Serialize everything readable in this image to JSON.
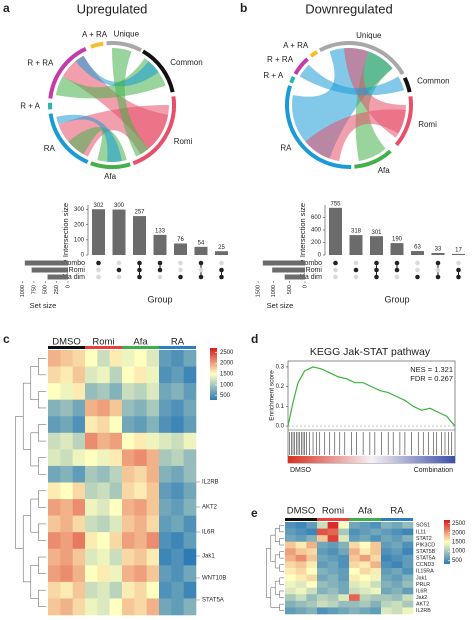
{
  "panels": {
    "a": {
      "label": "a",
      "title": "Upregulated",
      "chord": {
        "sets": [
          "A + RA",
          "Unique",
          "Common",
          "Romi",
          "Afa",
          "RA",
          "R + A",
          "R + RA"
        ]
      },
      "upset": {
        "type": "bar",
        "y_label": "Intersection size",
        "values": [
          302,
          300,
          257,
          133,
          76,
          54,
          25
        ],
        "ylim": [
          0,
          330
        ],
        "yticks": [
          0,
          100,
          200,
          300
        ],
        "color": "#6b6b6b",
        "rows": [
          "Combo",
          "Romi",
          "Afa dim"
        ],
        "matrix": [
          [
            1,
            0,
            1,
            1,
            0,
            1,
            0
          ],
          [
            0,
            1,
            1,
            1,
            0,
            0,
            1
          ],
          [
            0,
            0,
            1,
            0,
            1,
            1,
            1
          ]
        ],
        "set_sizes": [
          950,
          800,
          450
        ],
        "set_size_label": "Set size",
        "set_xlim": [
          0,
          1100
        ],
        "set_xticks": [
          1000,
          750,
          500,
          250,
          0
        ],
        "x_label": "Group"
      }
    },
    "b": {
      "label": "b",
      "title": "Downregulated",
      "chord": {
        "sets": [
          "A + RA",
          "Unique",
          "Common",
          "Romi",
          "Afa",
          "RA",
          "R + A",
          "R + RA"
        ]
      },
      "upset": {
        "type": "bar",
        "y_label": "Intersection size",
        "values": [
          755,
          318,
          301,
          190,
          63,
          33,
          17
        ],
        "ylim": [
          0,
          800
        ],
        "yticks": [
          0,
          200,
          400,
          600
        ],
        "color": "#6b6b6b",
        "rows": [
          "Combo",
          "Romi",
          "Afa dim"
        ],
        "matrix": [
          [
            1,
            0,
            1,
            1,
            0,
            1,
            0
          ],
          [
            0,
            1,
            1,
            1,
            0,
            0,
            1
          ],
          [
            0,
            0,
            1,
            0,
            1,
            1,
            1
          ]
        ],
        "set_sizes": [
          1350,
          1050,
          650
        ],
        "set_size_label": "Set size",
        "set_xlim": [
          0,
          1600
        ],
        "set_xticks": [
          1500,
          1000,
          500,
          0
        ],
        "x_label": "Group"
      }
    },
    "c": {
      "label": "c",
      "type": "heatmap",
      "groups": [
        "DMSO",
        "Romi",
        "Afa",
        "RA"
      ],
      "group_colors": [
        "#111111",
        "#e8413c",
        "#3fae49",
        "#2a7fc1"
      ],
      "genes": [
        "IL2RB",
        "AKT2",
        "IL6R",
        "Jak1",
        "WNT10B",
        "STAT5A"
      ],
      "matrix": [
        [
          1900,
          1800,
          1700,
          1500,
          1200,
          1600,
          1400,
          1500,
          1300,
          600,
          500,
          700
        ],
        [
          1700,
          1600,
          1800,
          1300,
          1400,
          1100,
          1500,
          1600,
          1400,
          500,
          600,
          400
        ],
        [
          1500,
          1400,
          1600,
          900,
          1000,
          800,
          1200,
          1100,
          1300,
          700,
          800,
          600
        ],
        [
          800,
          900,
          700,
          1900,
          2000,
          1800,
          900,
          800,
          1000,
          600,
          500,
          700
        ],
        [
          600,
          700,
          500,
          1600,
          1700,
          1500,
          700,
          600,
          800,
          500,
          400,
          600
        ],
        [
          1200,
          1300,
          1100,
          2100,
          1900,
          2000,
          1500,
          1600,
          1400,
          1300,
          1200,
          1400
        ],
        [
          1300,
          1200,
          1400,
          1500,
          1400,
          1600,
          2000,
          2100,
          1900,
          1000,
          1100,
          900
        ],
        [
          700,
          800,
          600,
          1000,
          900,
          1100,
          1800,
          1700,
          1900,
          800,
          700,
          900
        ],
        [
          1600,
          1500,
          1700,
          1100,
          1200,
          1000,
          1700,
          1600,
          1800,
          600,
          500,
          700
        ],
        [
          2000,
          1900,
          2100,
          1400,
          1300,
          1500,
          1900,
          2000,
          1800,
          700,
          600,
          800
        ],
        [
          1800,
          1900,
          1700,
          1200,
          1100,
          1300,
          1800,
          1900,
          1700,
          600,
          700,
          500
        ],
        [
          2100,
          2000,
          2200,
          1600,
          1500,
          1700,
          2000,
          1900,
          2100,
          500,
          400,
          600
        ],
        [
          1900,
          2000,
          1800,
          1300,
          1400,
          1200,
          1700,
          1800,
          1600,
          400,
          500,
          300
        ],
        [
          2000,
          2100,
          1900,
          1500,
          1600,
          1400,
          1900,
          2000,
          1800,
          600,
          500,
          700
        ],
        [
          1700,
          1600,
          1800,
          1200,
          1300,
          1100,
          1600,
          1700,
          1500,
          500,
          600,
          400
        ],
        [
          1800,
          1900,
          1700,
          1400,
          1300,
          1500,
          1800,
          1700,
          1900,
          700,
          600,
          800
        ]
      ],
      "colorbar": {
        "lim": [
          300,
          2700
        ],
        "ticks": [
          2500,
          2000,
          1500,
          1000,
          500
        ]
      }
    },
    "d": {
      "label": "d",
      "type": "line",
      "title": "KEGG Jak-STAT pathway",
      "y_label": "Enrichment score",
      "x": [
        0,
        3,
        6,
        10,
        15,
        20,
        25,
        30,
        35,
        40,
        45,
        50,
        55,
        60,
        65,
        70,
        75,
        80,
        85,
        90,
        95,
        100
      ],
      "values": [
        0,
        0.12,
        0.22,
        0.28,
        0.3,
        0.29,
        0.27,
        0.25,
        0.24,
        0.22,
        0.22,
        0.2,
        0.18,
        0.17,
        0.15,
        0.13,
        0.1,
        0.08,
        0.09,
        0.07,
        0.05,
        0
      ],
      "xlim": [
        0,
        100
      ],
      "ylim": [
        -0.02,
        0.33
      ],
      "yticks": [
        {
          "value": 0,
          "label": "0.0"
        },
        0.1,
        0.2,
        0.3
      ],
      "color": "#3cb33c",
      "hits": [
        1,
        2,
        3,
        4,
        5,
        6,
        7,
        8,
        9,
        10,
        11,
        13,
        15,
        17,
        19,
        22,
        25,
        28,
        31,
        34,
        38,
        41,
        45,
        49,
        52,
        56,
        60,
        63,
        67,
        70,
        74,
        78,
        81,
        84,
        87,
        89,
        92,
        94,
        96,
        98
      ],
      "stats": [
        "NES = 1.321",
        "FDR = 0.267"
      ],
      "ends": [
        "DMSO",
        "Combination"
      ]
    },
    "e": {
      "label": "e",
      "type": "heatmap",
      "groups": [
        "DMSO",
        "Romi",
        "Afa",
        "RA"
      ],
      "group_colors": [
        "#111111",
        "#e8413c",
        "#3fae49",
        "#2a7fc1"
      ],
      "genes": [
        "SOS1",
        "IL11",
        "STAT2",
        "PIK3CD",
        "STAT5B",
        "STAT5A",
        "CCND3",
        "IL15RA",
        "Jak1",
        "PRLR",
        "IL6R",
        "Jak2",
        "AKT2",
        "IL2RB"
      ],
      "matrix": [
        [
          500,
          400,
          600,
          1200,
          2600,
          1500,
          700,
          600,
          500,
          800,
          700,
          900
        ],
        [
          600,
          500,
          400,
          2400,
          2300,
          1000,
          500,
          600,
          700,
          600,
          500,
          400
        ],
        [
          700,
          600,
          800,
          1800,
          2500,
          1300,
          600,
          700,
          500,
          700,
          600,
          800
        ],
        [
          1800,
          1600,
          1900,
          700,
          600,
          800,
          1700,
          1500,
          1800,
          600,
          700,
          500
        ],
        [
          2000,
          1800,
          1700,
          600,
          500,
          700,
          1900,
          1600,
          1800,
          500,
          600,
          400
        ],
        [
          1900,
          2100,
          1800,
          700,
          600,
          500,
          1800,
          2000,
          1700,
          400,
          500,
          600
        ],
        [
          1700,
          1800,
          1600,
          600,
          700,
          500,
          1700,
          1600,
          1900,
          500,
          400,
          600
        ],
        [
          1600,
          1700,
          1500,
          800,
          700,
          600,
          1500,
          1700,
          1600,
          600,
          700,
          500
        ],
        [
          1500,
          1600,
          1700,
          700,
          800,
          600,
          1600,
          1500,
          1400,
          700,
          600,
          800
        ],
        [
          1400,
          1300,
          1500,
          900,
          800,
          700,
          1300,
          1400,
          1200,
          800,
          700,
          900
        ],
        [
          1300,
          1400,
          1200,
          800,
          900,
          700,
          1200,
          1300,
          1400,
          700,
          800,
          600
        ],
        [
          1000,
          1200,
          900,
          1100,
          1000,
          1300,
          2300,
          1100,
          1000,
          1000,
          900,
          1200
        ],
        [
          800,
          900,
          1000,
          1200,
          1100,
          900,
          900,
          1000,
          800,
          1100,
          1200,
          1000
        ],
        [
          600,
          700,
          800,
          500,
          600,
          700,
          800,
          700,
          600,
          1300,
          1200,
          1400
        ]
      ],
      "colorbar": {
        "lim": [
          300,
          2700
        ],
        "ticks": [
          2500,
          2000,
          1500,
          1000,
          500
        ]
      }
    }
  }
}
